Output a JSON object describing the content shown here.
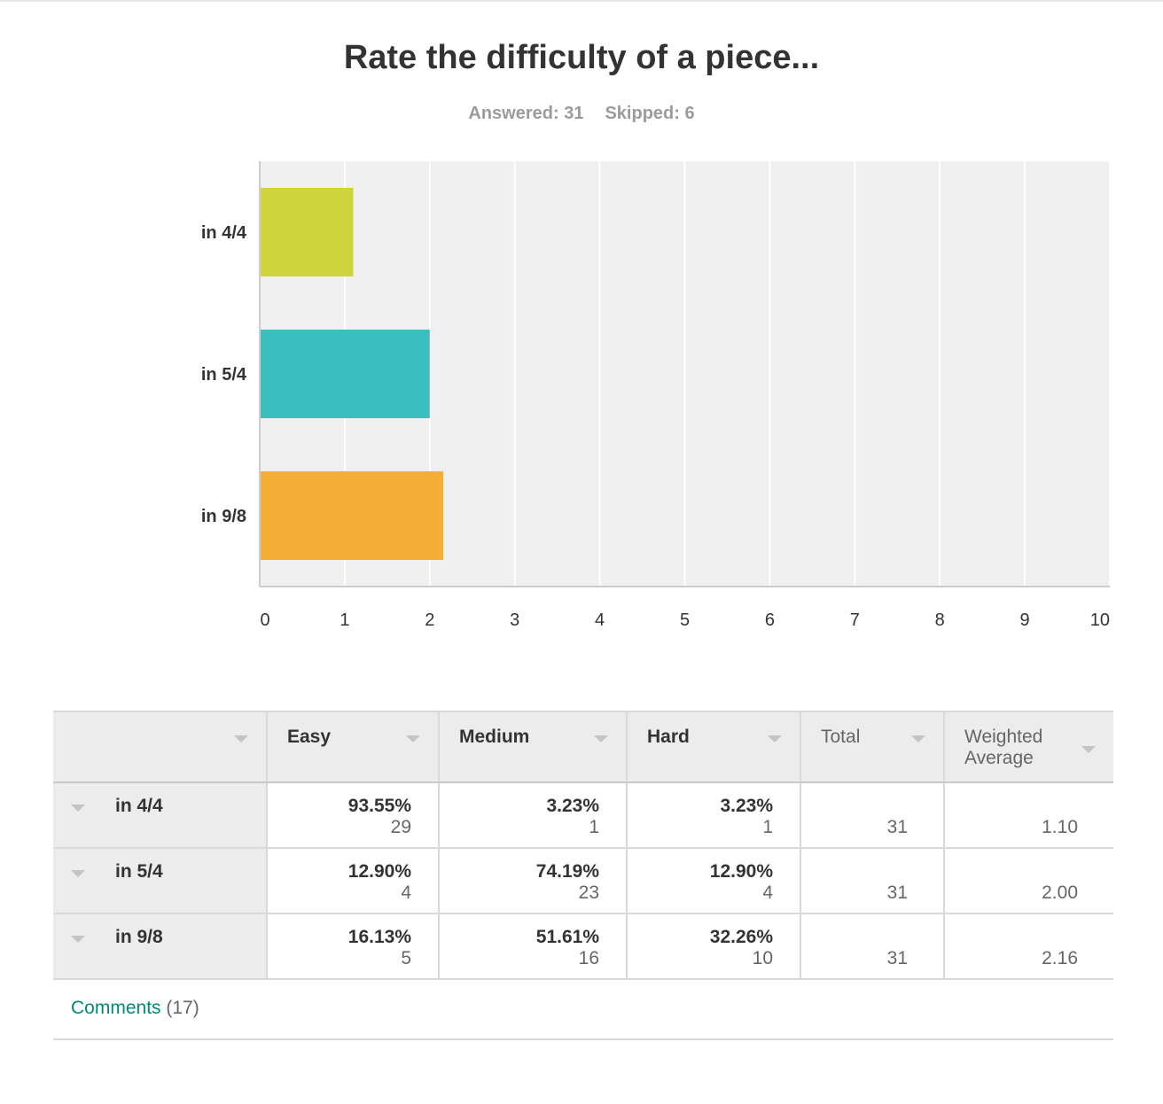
{
  "question": {
    "title": "Rate the difficulty of a piece...",
    "answered_label": "Answered: 31",
    "skipped_label": "Skipped: 6"
  },
  "chart_data": {
    "type": "bar",
    "orientation": "horizontal",
    "categories": [
      "in 4/4",
      "in 5/4",
      "in 9/8"
    ],
    "values": [
      1.1,
      2.0,
      2.16
    ],
    "colors": [
      "#cfd43c",
      "#3cbdbe",
      "#f4ae36"
    ],
    "xlim": [
      0,
      10
    ],
    "xticks": [
      "0",
      "1",
      "2",
      "3",
      "4",
      "5",
      "6",
      "7",
      "8",
      "9",
      "10"
    ],
    "grid": true
  },
  "table": {
    "columns": [
      "Easy",
      "Medium",
      "Hard",
      "Total",
      "Weighted Average"
    ],
    "rows": [
      {
        "label": "in 4/4",
        "cells": [
          {
            "pct": "93.55%",
            "count": "29"
          },
          {
            "pct": "3.23%",
            "count": "1"
          },
          {
            "pct": "3.23%",
            "count": "1"
          }
        ],
        "total": "31",
        "weighted_average": "1.10"
      },
      {
        "label": "in 5/4",
        "cells": [
          {
            "pct": "12.90%",
            "count": "4"
          },
          {
            "pct": "74.19%",
            "count": "23"
          },
          {
            "pct": "12.90%",
            "count": "4"
          }
        ],
        "total": "31",
        "weighted_average": "2.00"
      },
      {
        "label": "in 9/8",
        "cells": [
          {
            "pct": "16.13%",
            "count": "5"
          },
          {
            "pct": "51.61%",
            "count": "16"
          },
          {
            "pct": "32.26%",
            "count": "10"
          }
        ],
        "total": "31",
        "weighted_average": "2.16"
      }
    ]
  },
  "comments": {
    "link_label": "Comments",
    "count_label": "(17)"
  }
}
